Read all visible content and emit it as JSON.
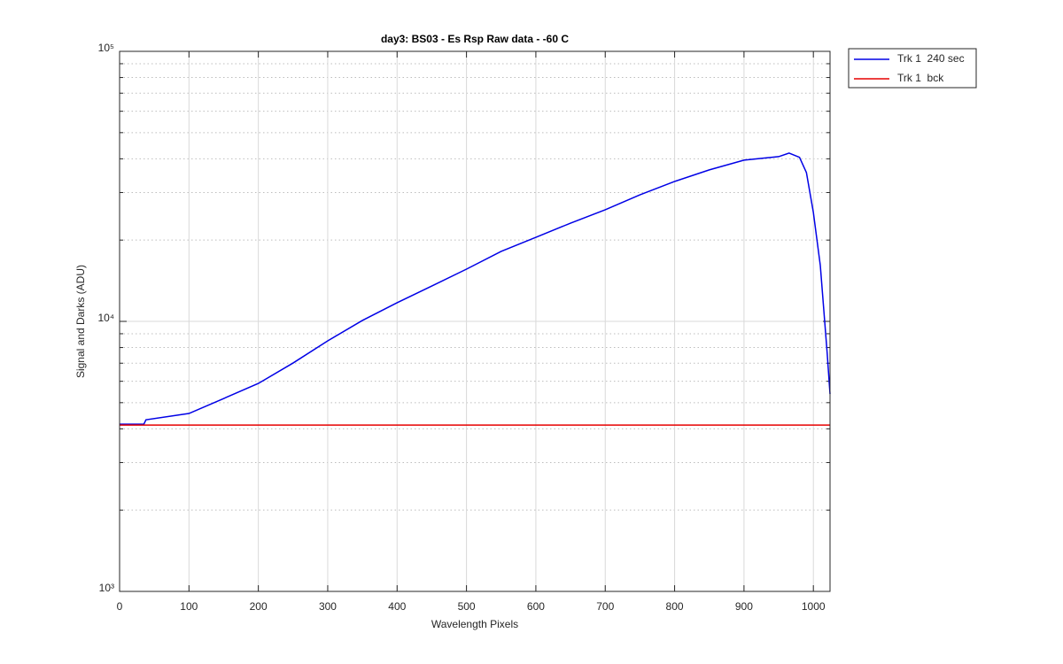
{
  "chart_data": {
    "type": "line",
    "title": "day3: BS03  - Es Rsp Raw data - -60 C",
    "xlabel": "Wavelength Pixels",
    "ylabel": "Signal and Darks (ADU)",
    "log_y": true,
    "grid": true,
    "legend": "outside-top-right",
    "xlim": [
      0,
      1024
    ],
    "xticks": [
      0,
      100,
      200,
      300,
      400,
      500,
      600,
      700,
      800,
      900,
      1000
    ],
    "ylim": [
      1000,
      100000
    ],
    "yticks": [
      {
        "value": 1000,
        "label": "10³"
      },
      {
        "value": 10000,
        "label": "10⁴"
      },
      {
        "value": 100000,
        "label": "10⁵"
      }
    ],
    "yminorticks": [
      2000,
      3000,
      4000,
      5000,
      6000,
      7000,
      8000,
      9000,
      20000,
      30000,
      40000,
      50000,
      60000,
      70000,
      80000,
      90000
    ],
    "series": [
      {
        "name": "Trk 1  240 sec",
        "color": "#0000e6",
        "x": [
          0,
          35,
          38,
          100,
          150,
          200,
          250,
          300,
          350,
          400,
          450,
          500,
          550,
          600,
          650,
          700,
          750,
          800,
          850,
          900,
          950,
          965,
          980,
          990,
          1000,
          1010,
          1020,
          1024
        ],
        "values": [
          4160,
          4160,
          4320,
          4560,
          5180,
          5890,
          7010,
          8470,
          10080,
          11720,
          13520,
          15610,
          18160,
          20480,
          23110,
          25900,
          29430,
          32980,
          36390,
          39550,
          40750,
          42000,
          40500,
          35560,
          25300,
          16100,
          7560,
          5380
        ]
      },
      {
        "name": "Trk 1  bck",
        "color": "#e60000",
        "x": [
          0,
          1024
        ],
        "values": [
          4130,
          4130
        ]
      }
    ]
  }
}
